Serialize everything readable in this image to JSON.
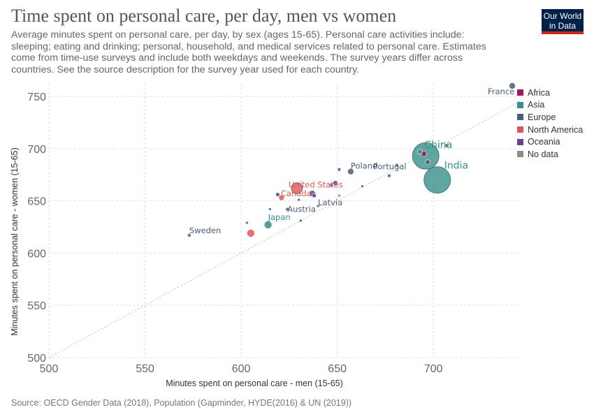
{
  "header": {
    "title": "Time spent on personal care, per day, men vs women",
    "subtitle": "Average minutes spent on personal care, per day, by sex (ages 15-65). Personal care activities include: sleeping; eating and drinking; personal, household, and medical services related to personal care. Estimates come from time-use surveys and include both weekdays and weekends. The survey years differ across countries. See the source description for the survey year used for each country.",
    "logo_line1": "Our World",
    "logo_line2": "in Data"
  },
  "source": "Source: OECD Gender Data (2018), Population (Gapminder, HYDE(2016) & UN (2019))",
  "legend": [
    {
      "label": "Africa",
      "color": "#a2185b"
    },
    {
      "label": "Asia",
      "color": "#3a8e8b"
    },
    {
      "label": "Europe",
      "color": "#4c5c7a"
    },
    {
      "label": "North America",
      "color": "#e15759"
    },
    {
      "label": "Oceania",
      "color": "#6d3e91"
    },
    {
      "label": "No data",
      "color": "#8c8c8c"
    }
  ],
  "chart_data": {
    "type": "scatter",
    "title": "Time spent on personal care, per day, men vs women",
    "xlabel": "Minutes spent on personal care - men (15-65)",
    "ylabel": "Minutes spent on personal care - women (15-65)",
    "xlim": [
      500,
      745
    ],
    "ylim": [
      500,
      762
    ],
    "xticks": [
      500,
      550,
      600,
      650,
      700
    ],
    "yticks": [
      500,
      550,
      600,
      650,
      700,
      750
    ],
    "grid": true,
    "reference_line": "y = x",
    "legend_position": "right",
    "points": [
      {
        "label": "France",
        "region": "Europe",
        "x": 741,
        "y": 760,
        "size": 4.5
      },
      {
        "label": "China",
        "region": "Asia",
        "x": 696,
        "y": 693,
        "size": 19
      },
      {
        "label": "India",
        "region": "Asia",
        "x": 702,
        "y": 670,
        "size": 19
      },
      {
        "label": "",
        "region": "Africa",
        "x": 695,
        "y": 695,
        "size": 4
      },
      {
        "label": "",
        "region": "Asia",
        "x": 693,
        "y": 697,
        "size": 3.5
      },
      {
        "label": "",
        "region": "Europe",
        "x": 697,
        "y": 687,
        "size": 3.5
      },
      {
        "label": "",
        "region": "Europe",
        "x": 707,
        "y": 703,
        "size": 2.5
      },
      {
        "label": "Poland",
        "region": "Europe",
        "x": 657,
        "y": 678,
        "size": 4.5
      },
      {
        "label": "",
        "region": "Europe",
        "x": 651,
        "y": 680,
        "size": 2.5
      },
      {
        "label": "Portugal",
        "region": "Europe",
        "x": 681,
        "y": 684,
        "size": 2.5
      },
      {
        "label": "",
        "region": "Europe",
        "x": 677,
        "y": 674,
        "size": 2.5
      },
      {
        "label": "United States",
        "region": "North America",
        "x": 629,
        "y": 662,
        "size": 8
      },
      {
        "label": "Canada",
        "region": "North America",
        "x": 621,
        "y": 653,
        "size": 4
      },
      {
        "label": "",
        "region": "Europe",
        "x": 637,
        "y": 657,
        "size": 4.5
      },
      {
        "label": "",
        "region": "Europe",
        "x": 619,
        "y": 656,
        "size": 3
      },
      {
        "label": "",
        "region": "Oceania",
        "x": 649,
        "y": 667,
        "size": 3.5
      },
      {
        "label": "",
        "region": "Europe",
        "x": 647,
        "y": 665,
        "size": 2.5
      },
      {
        "label": "",
        "region": "Oceania",
        "x": 638,
        "y": 655,
        "size": 3
      },
      {
        "label": "",
        "region": "Europe",
        "x": 663,
        "y": 664,
        "size": 2
      },
      {
        "label": "",
        "region": "No data",
        "x": 651,
        "y": 655,
        "size": 2
      },
      {
        "label": "",
        "region": "Europe",
        "x": 630,
        "y": 651,
        "size": 2
      },
      {
        "label": "Latvia",
        "region": "Europe",
        "x": 640,
        "y": 645,
        "size": 2
      },
      {
        "label": "Austria",
        "region": "Europe",
        "x": 624,
        "y": 642,
        "size": 2.5
      },
      {
        "label": "",
        "region": "Europe",
        "x": 615,
        "y": 642,
        "size": 2
      },
      {
        "label": "Japan",
        "region": "Asia",
        "x": 614,
        "y": 627,
        "size": 5.5
      },
      {
        "label": "",
        "region": "Europe",
        "x": 603,
        "y": 629,
        "size": 2
      },
      {
        "label": "",
        "region": "Europe",
        "x": 631,
        "y": 631,
        "size": 2
      },
      {
        "label": "",
        "region": "North America",
        "x": 605,
        "y": 619,
        "size": 5.5
      },
      {
        "label": "Sweden",
        "region": "Europe",
        "x": 573,
        "y": 617,
        "size": 2.5
      }
    ]
  }
}
